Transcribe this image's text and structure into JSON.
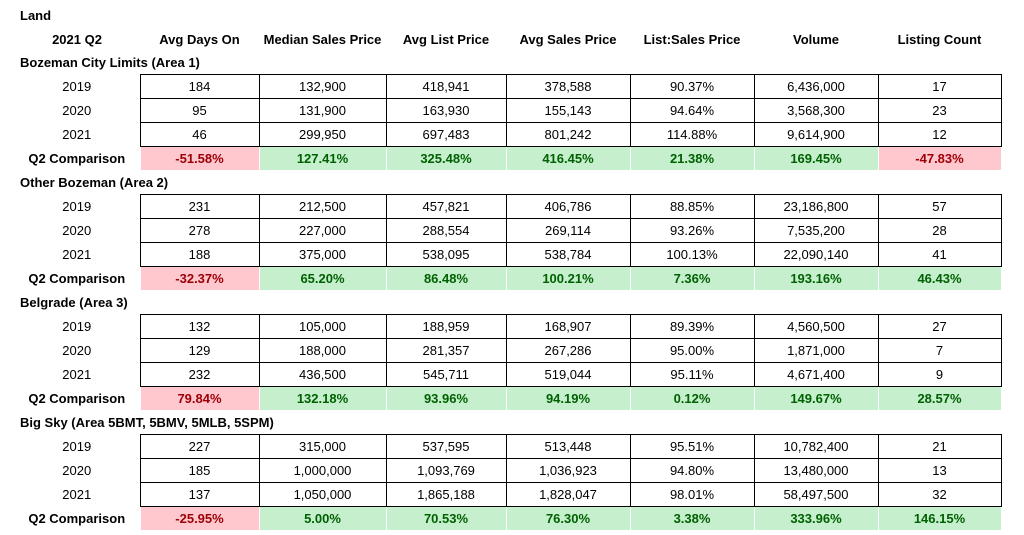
{
  "title": "Land",
  "header": {
    "period": "2021 Q2",
    "columns": [
      "Avg Days On",
      "Median Sales Price",
      "Avg List Price",
      "Avg Sales Price",
      "List:Sales Price",
      "Volume",
      "Listing Count"
    ]
  },
  "colors": {
    "positive_bg": "#c6efce",
    "positive_text": "#006100",
    "negative_bg": "#ffc7ce",
    "negative_text": "#9c0006"
  },
  "sections": [
    {
      "name": "Bozeman City Limits (Area 1)",
      "years": [
        {
          "year": "2019",
          "values": [
            "184",
            "132,900",
            "418,941",
            "378,588",
            "90.37%",
            "6,436,000",
            "17"
          ]
        },
        {
          "year": "2020",
          "values": [
            "95",
            "131,900",
            "163,930",
            "155,143",
            "94.64%",
            "3,568,300",
            "23"
          ]
        },
        {
          "year": "2021",
          "values": [
            "46",
            "299,950",
            "697,483",
            "801,242",
            "114.88%",
            "9,614,900",
            "12"
          ]
        }
      ],
      "comparison": {
        "label": "Q2 Comparison",
        "values": [
          "-51.58%",
          "127.41%",
          "325.48%",
          "416.45%",
          "21.38%",
          "169.45%",
          "-47.83%"
        ]
      }
    },
    {
      "name": "Other Bozeman (Area 2)",
      "years": [
        {
          "year": "2019",
          "values": [
            "231",
            "212,500",
            "457,821",
            "406,786",
            "88.85%",
            "23,186,800",
            "57"
          ]
        },
        {
          "year": "2020",
          "values": [
            "278",
            "227,000",
            "288,554",
            "269,114",
            "93.26%",
            "7,535,200",
            "28"
          ]
        },
        {
          "year": "2021",
          "values": [
            "188",
            "375,000",
            "538,095",
            "538,784",
            "100.13%",
            "22,090,140",
            "41"
          ]
        }
      ],
      "comparison": {
        "label": "Q2 Comparison",
        "values": [
          "-32.37%",
          "65.20%",
          "86.48%",
          "100.21%",
          "7.36%",
          "193.16%",
          "46.43%"
        ]
      }
    },
    {
      "name": "Belgrade (Area 3)",
      "years": [
        {
          "year": "2019",
          "values": [
            "132",
            "105,000",
            "188,959",
            "168,907",
            "89.39%",
            "4,560,500",
            "27"
          ]
        },
        {
          "year": "2020",
          "values": [
            "129",
            "188,000",
            "281,357",
            "267,286",
            "95.00%",
            "1,871,000",
            "7"
          ]
        },
        {
          "year": "2021",
          "values": [
            "232",
            "436,500",
            "545,711",
            "519,044",
            "95.11%",
            "4,671,400",
            "9"
          ]
        }
      ],
      "comparison": {
        "label": "Q2 Comparison",
        "values": [
          "79.84%",
          "132.18%",
          "93.96%",
          "94.19%",
          "0.12%",
          "149.67%",
          "28.57%"
        ]
      }
    },
    {
      "name": "Big Sky (Area 5BMT, 5BMV, 5MLB, 5SPM)",
      "years": [
        {
          "year": "2019",
          "values": [
            "227",
            "315,000",
            "537,595",
            "513,448",
            "95.51%",
            "10,782,400",
            "21"
          ]
        },
        {
          "year": "2020",
          "values": [
            "185",
            "1,000,000",
            "1,093,769",
            "1,036,923",
            "94.80%",
            "13,480,000",
            "13"
          ]
        },
        {
          "year": "2021",
          "values": [
            "137",
            "1,050,000",
            "1,865,188",
            "1,828,047",
            "98.01%",
            "58,497,500",
            "32"
          ]
        }
      ],
      "comparison": {
        "label": "Q2 Comparison",
        "values": [
          "-25.95%",
          "5.00%",
          "70.53%",
          "76.30%",
          "3.38%",
          "333.96%",
          "146.15%"
        ]
      }
    }
  ]
}
